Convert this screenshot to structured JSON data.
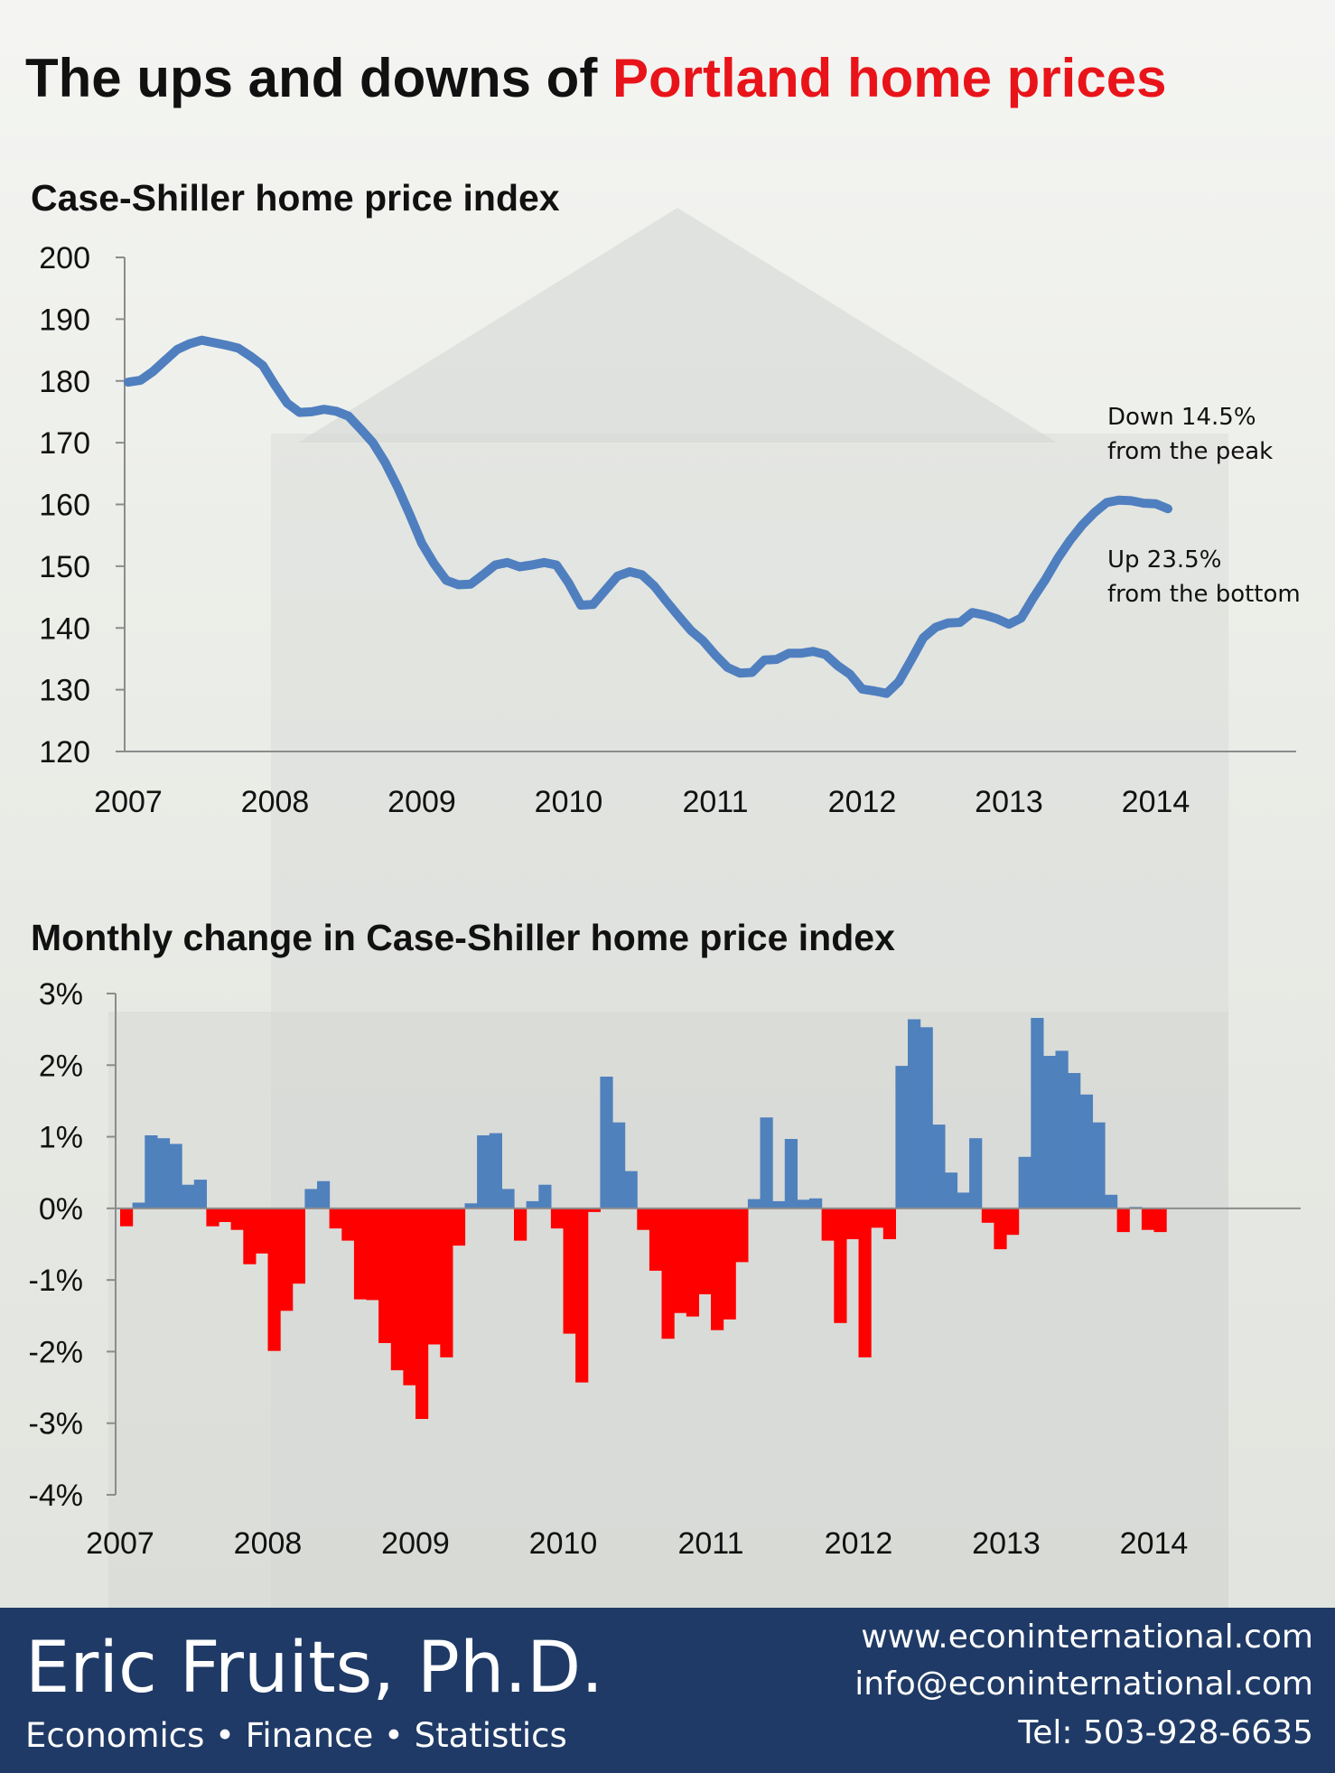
{
  "title": {
    "prefix": "The ups and downs of ",
    "highlight": "Portland home prices"
  },
  "colors": {
    "line": "#4f7fbf",
    "positive": "#4f81bd",
    "negative": "#ff0000",
    "title_highlight": "#e8141a",
    "footer_bg": "#1f3a66"
  },
  "annotations": {
    "peak": [
      "Down 14.5%",
      "from the peak"
    ],
    "bottom": [
      "Up 23.5%",
      "from the bottom"
    ]
  },
  "footer": {
    "name": "Eric Fruits, Ph.D.",
    "tagline": "Economics • Finance • Statistics",
    "website": "www.econinternational.com",
    "email": "info@econinternational.com",
    "phone": "Tel: 503-928-6635"
  },
  "chart_data": [
    {
      "type": "line",
      "title": "Case-Shiller home price index",
      "x_tick_labels": [
        "2007",
        "2008",
        "2009",
        "2010",
        "2011",
        "2012",
        "2013",
        "2014"
      ],
      "y_tick_labels": [
        "120",
        "130",
        "140",
        "150",
        "160",
        "170",
        "180",
        "190",
        "200"
      ],
      "ylim": [
        120,
        200
      ],
      "grid": false,
      "series": [
        {
          "x_start": "2007-01",
          "frequency": "monthly",
          "values": [
            179.8,
            180.1,
            181.5,
            183.3,
            185.1,
            186.0,
            186.6,
            186.2,
            185.8,
            185.3,
            184.0,
            182.5,
            179.3,
            176.4,
            174.9,
            175.0,
            175.4,
            175.1,
            174.3,
            172.2,
            170.0,
            166.8,
            162.9,
            158.4,
            153.7,
            150.4,
            147.7,
            147.0,
            147.1,
            148.6,
            150.2,
            150.6,
            149.9,
            150.2,
            150.6,
            150.2,
            147.3,
            143.7,
            143.8,
            146.1,
            148.4,
            149.1,
            148.6,
            146.8,
            144.3,
            141.9,
            139.6,
            137.9,
            135.6,
            133.6,
            132.7,
            132.8,
            134.8,
            134.9,
            135.9,
            135.9,
            136.2,
            135.7,
            133.9,
            132.5,
            130.1,
            129.8,
            129.4,
            131.3,
            134.8,
            138.4,
            140.1,
            140.8,
            140.9,
            142.5,
            142.1,
            141.5,
            140.6,
            141.6,
            144.9,
            147.9,
            151.3,
            154.2,
            156.7,
            158.7,
            160.3,
            160.7,
            160.6,
            160.2,
            160.1,
            159.3
          ]
        }
      ]
    },
    {
      "type": "bar",
      "title": "Monthly change in Case-Shiller home price index",
      "x_tick_labels": [
        "2007",
        "2008",
        "2009",
        "2010",
        "2011",
        "2012",
        "2013",
        "2014"
      ],
      "y_tick_labels": [
        "3%",
        "2%",
        "1%",
        "0%",
        "-1%",
        "-2%",
        "-3%",
        "-4%"
      ],
      "ylim": [
        -4,
        3
      ],
      "grid": false,
      "x_start": "2007-01",
      "frequency": "monthly",
      "values": [
        -0.25,
        0.08,
        1.02,
        0.98,
        0.9,
        0.33,
        0.4,
        -0.25,
        -0.19,
        -0.3,
        -0.78,
        -0.63,
        -1.99,
        -1.43,
        -1.05,
        0.27,
        0.38,
        -0.28,
        -0.45,
        -1.27,
        -1.28,
        -1.88,
        -2.26,
        -2.47,
        -2.94,
        -1.9,
        -2.08,
        -0.52,
        0.07,
        1.02,
        1.05,
        0.27,
        -0.45,
        0.1,
        0.33,
        -0.28,
        -1.75,
        -2.43,
        -0.05,
        1.84,
        1.2,
        0.52,
        -0.3,
        -0.87,
        -1.82,
        -1.46,
        -1.51,
        -1.2,
        -1.7,
        -1.55,
        -0.75,
        0.13,
        1.27,
        0.1,
        0.97,
        0.12,
        0.14,
        -0.45,
        -1.6,
        -0.43,
        -2.08,
        -0.27,
        -0.43,
        1.99,
        2.64,
        2.53,
        1.17,
        0.5,
        0.22,
        0.98,
        -0.2,
        -0.57,
        -0.37,
        0.72,
        2.66,
        2.13,
        2.2,
        1.89,
        1.59,
        1.2,
        0.19,
        -0.33,
        0.02,
        -0.3,
        -0.33,
        0.0
      ]
    }
  ]
}
